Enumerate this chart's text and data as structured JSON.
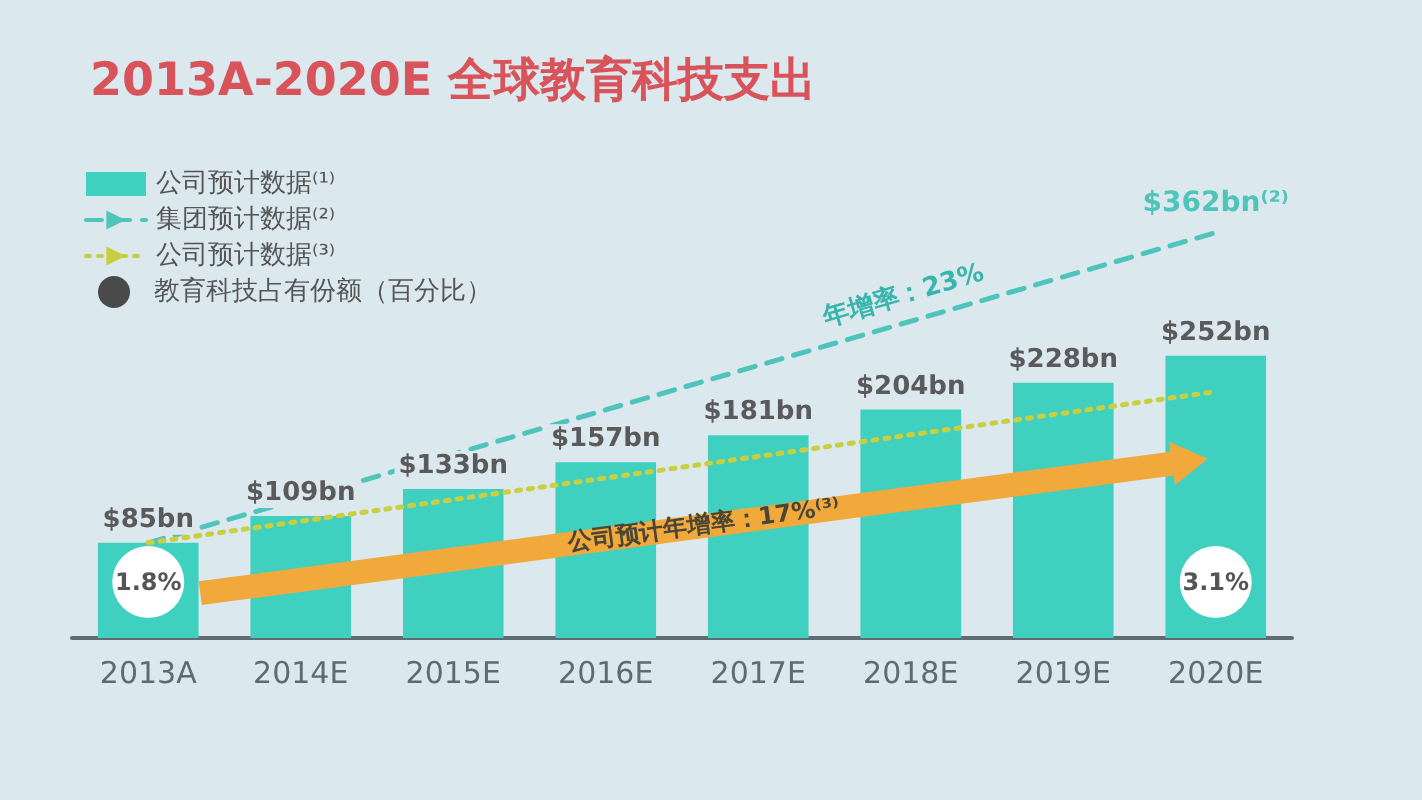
{
  "chart_data": {
    "type": "bar",
    "title": "2013A-2020E 全球教育科技支出",
    "categories": [
      "2013A",
      "2014E",
      "2015E",
      "2016E",
      "2017E",
      "2018E",
      "2019E",
      "2020E"
    ],
    "series": [
      {
        "name": "公司预计数据⁽¹⁾",
        "color": "#3fd0c0",
        "values": [
          85,
          109,
          133,
          157,
          181,
          204,
          228,
          252
        ],
        "value_labels": [
          "$85bn",
          "$109bn",
          "$133bn",
          "$157bn",
          "$181bn",
          "$204bn",
          "$228bn",
          "$252bn"
        ]
      },
      {
        "name": "集团预计数据⁽²⁾",
        "type": "line",
        "line_style": "dashed",
        "color": "#4fc4bb",
        "x": [
          "2013A",
          "2020E"
        ],
        "values": [
          85,
          362
        ],
        "value_labels": [
          null,
          "$362bn⁽²⁾"
        ]
      },
      {
        "name": "公司预计数据⁽³⁾",
        "type": "line",
        "line_style": "dotted",
        "color": "#c9cf3e",
        "x": [
          "2013A",
          "2020E"
        ],
        "values": [
          85,
          220
        ]
      }
    ],
    "tick_labels": "x",
    "legend": "top left",
    "annotations": [
      {
        "text": "年增率：23%",
        "x": "2018E",
        "y": 283
      },
      {
        "text": "1.8%",
        "x": "2013A"
      },
      {
        "text": "3.1%",
        "x": "2020E"
      },
      "公司预计年增率：17%⁽³⁾",
      "教育科技占有份额（百分比）"
    ]
  }
}
